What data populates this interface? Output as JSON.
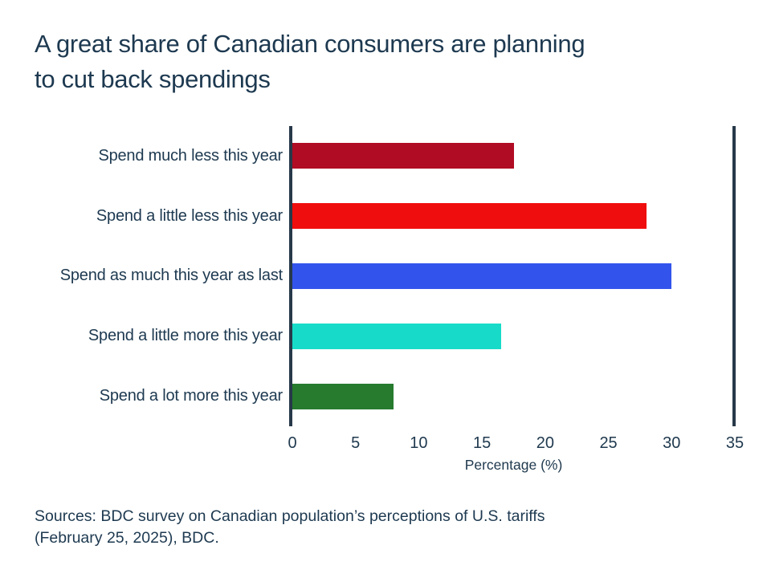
{
  "title": "A great share of Canadian consumers are planning\nto cut back spendings",
  "source": "Sources: BDC survey on Canadian population’s perceptions of U.S. tariffs\n(February 25, 2025), BDC.",
  "colors": {
    "background": "#ffffff",
    "text": "#1d3950",
    "axis": "#27394a"
  },
  "chart_data": {
    "type": "bar",
    "orientation": "horizontal",
    "title": "A great share of Canadian consumers are planning to cut back spendings",
    "categories": [
      "Spend much less this year",
      "Spend a little less this year",
      "Spend as much this year as last",
      "Spend a little more this year",
      "Spend a lot more this year"
    ],
    "values": [
      17.5,
      28,
      30,
      16.5,
      8
    ],
    "bar_colors": [
      "#b00c23",
      "#f00d0d",
      "#3354ec",
      "#17dbc8",
      "#267b2e"
    ],
    "xlabel": "Percentage (%)",
    "xticks": [
      0,
      5,
      10,
      15,
      20,
      25,
      30,
      35
    ],
    "xlim": [
      0,
      35
    ],
    "grid": false,
    "legend": "none"
  }
}
